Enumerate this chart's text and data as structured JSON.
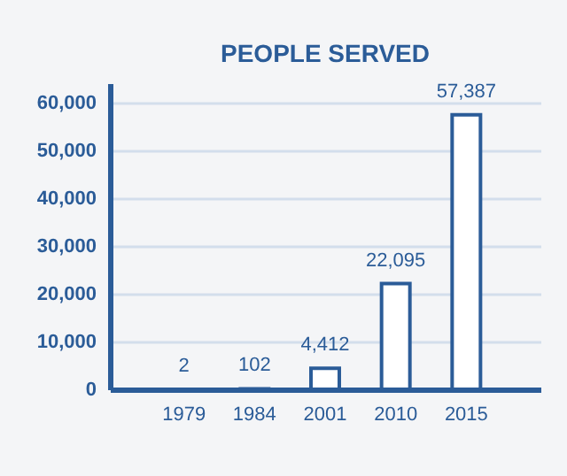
{
  "chart_data": {
    "type": "bar",
    "title": "PEOPLE SERVED",
    "categories": [
      "1979",
      "1984",
      "2001",
      "2010",
      "2015"
    ],
    "values": [
      2,
      102,
      4412,
      22095,
      57387
    ],
    "value_labels": [
      "2",
      "102",
      "4,412",
      "22,095",
      "57,387"
    ],
    "color": "#2b5c98",
    "ylim": [
      0,
      64000
    ],
    "yticks": [
      {
        "value": 0,
        "label": "0"
      },
      {
        "value": 10000,
        "label": "10,000"
      },
      {
        "value": 20000,
        "label": "20,000"
      },
      {
        "value": 30000,
        "label": "30,000"
      },
      {
        "value": 40000,
        "label": "40,000"
      },
      {
        "value": 50000,
        "label": "50,000"
      },
      {
        "value": 60000,
        "label": "60,000"
      }
    ],
    "grid": "y"
  }
}
